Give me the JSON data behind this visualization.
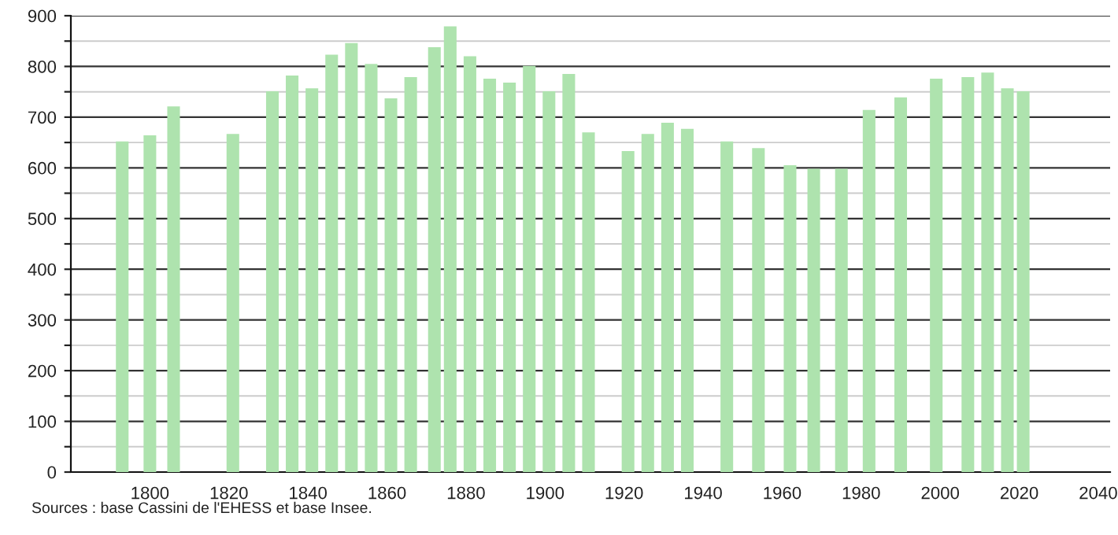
{
  "chart_data": {
    "type": "bar",
    "color": "#aee3ae",
    "x": [
      1793,
      1800,
      1806,
      1821,
      1831,
      1836,
      1841,
      1846,
      1851,
      1856,
      1861,
      1866,
      1872,
      1876,
      1881,
      1886,
      1891,
      1896,
      1901,
      1906,
      1911,
      1921,
      1926,
      1931,
      1936,
      1946,
      1954,
      1962,
      1968,
      1975,
      1982,
      1990,
      1999,
      2007,
      2012,
      2017,
      2021
    ],
    "values": [
      652,
      664,
      721,
      667,
      751,
      782,
      757,
      823,
      846,
      805,
      737,
      779,
      838,
      879,
      820,
      776,
      768,
      801,
      751,
      785,
      670,
      633,
      667,
      689,
      677,
      652,
      639,
      605,
      598,
      598,
      714,
      739,
      776,
      779,
      788,
      757,
      751
    ],
    "xlim": [
      1780,
      2043
    ],
    "xticks": [
      1800,
      1820,
      1840,
      1860,
      1880,
      1900,
      1920,
      1940,
      1960,
      1980,
      2000,
      2020,
      2040
    ],
    "ylim": [
      0,
      900
    ],
    "yticks": [
      0,
      {
        "value": 50,
        "label": null
      },
      100,
      {
        "value": 150,
        "label": null
      },
      200,
      {
        "value": 250,
        "label": null
      },
      300,
      {
        "value": 350,
        "label": null
      },
      400,
      {
        "value": 450,
        "label": null
      },
      500,
      {
        "value": 550,
        "label": null
      },
      600,
      {
        "value": 650,
        "label": null
      },
      700,
      {
        "value": 750,
        "label": null
      },
      800,
      {
        "value": 850,
        "label": null
      },
      900
    ],
    "grid": "y",
    "annotations": [
      "Sources : base Cassini de l'EHESS et base Insee."
    ]
  }
}
